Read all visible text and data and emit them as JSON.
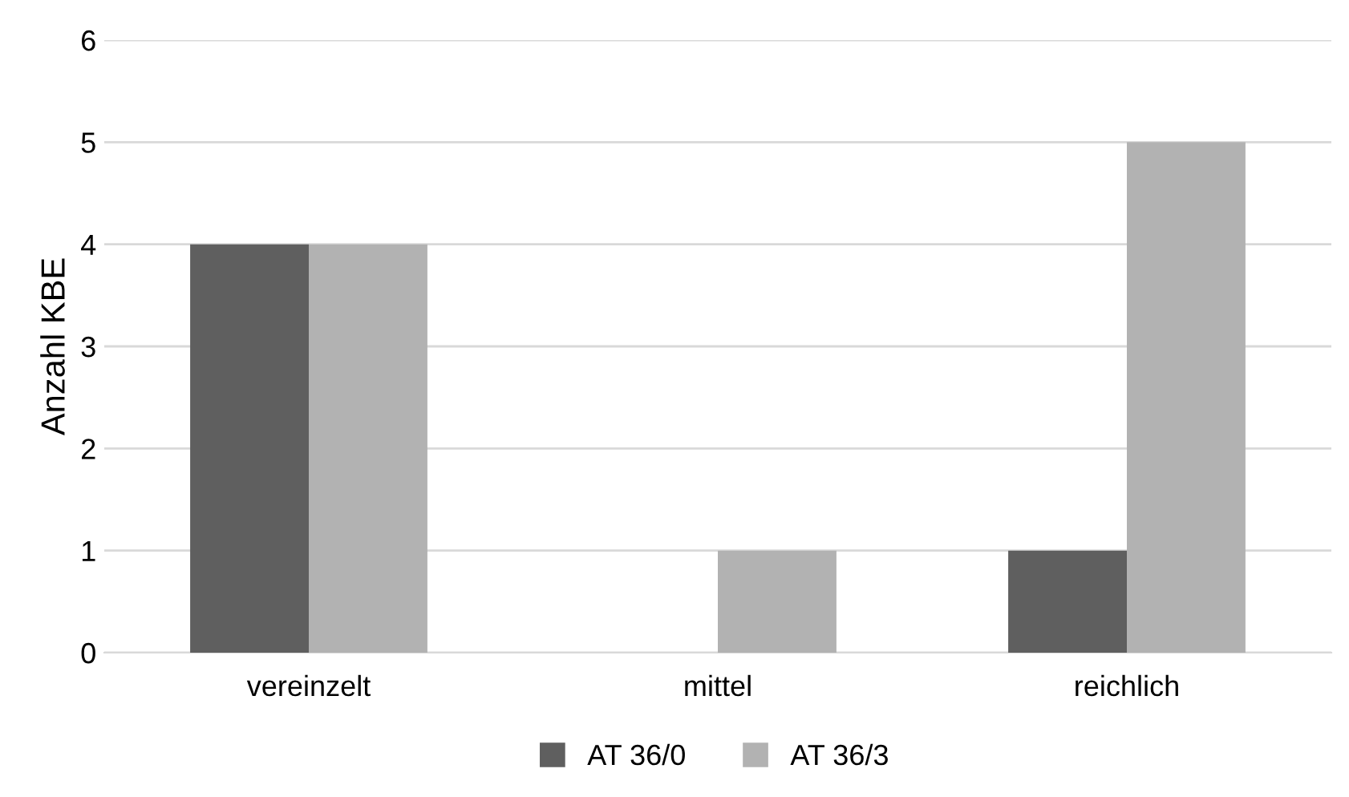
{
  "chart_data": {
    "type": "bar",
    "ylabel": "Anzahl KBE",
    "categories": [
      "vereinzelt",
      "mittel",
      "reichlich"
    ],
    "series": [
      {
        "name": "AT 36/0",
        "color": "#5f5f5f",
        "values": [
          4,
          0,
          1
        ]
      },
      {
        "name": "AT 36/3",
        "color": "#b2b2b2",
        "values": [
          4,
          1,
          5
        ]
      }
    ],
    "ylim": [
      0,
      6
    ],
    "yticks": [
      0,
      1,
      2,
      3,
      4,
      5,
      6
    ],
    "grid": "y",
    "legend": "bottom"
  }
}
